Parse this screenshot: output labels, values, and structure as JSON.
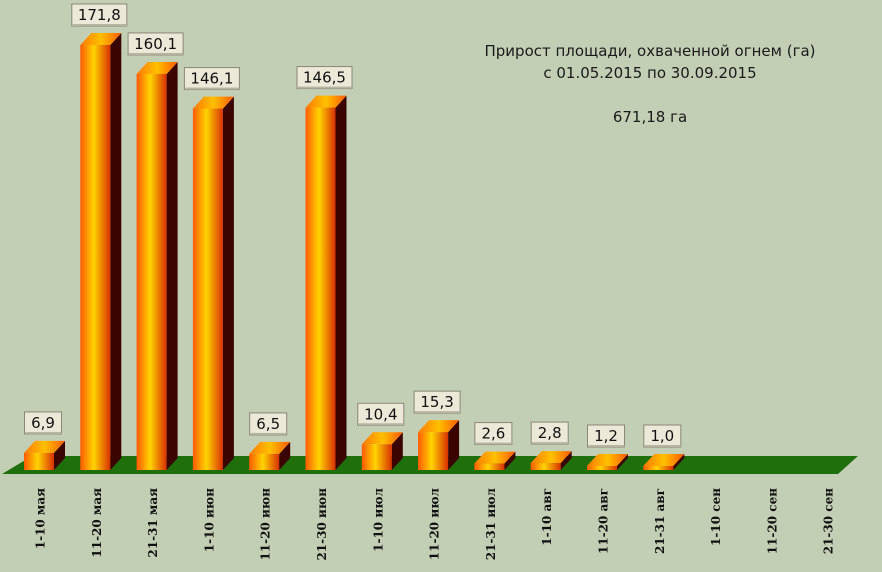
{
  "chart_data": {
    "type": "bar",
    "title": "Прирост площади, охваченной огнем (га)",
    "subtitle": "с 01.05.2015  по  30.09.2015",
    "annotation": "671,18 га",
    "categories": [
      "1-10   мая",
      "11-20 мая",
      "21-31 мая",
      "1-10   июн",
      "11-20 июн",
      "21-30 июн",
      "1-10  июл",
      "11-20 июл",
      "21-31 июл",
      "1-10    авг",
      "11-20  авг",
      "21-31  авг",
      "1-10   сен",
      "11-20 сен",
      "21-30 сен"
    ],
    "values": [
      6.9,
      171.8,
      160.1,
      146.1,
      6.5,
      146.5,
      10.4,
      15.3,
      2.6,
      2.8,
      1.2,
      1.0,
      null,
      null,
      null
    ],
    "value_labels": [
      "6,9",
      "171,8",
      "160,1",
      "146,1",
      "6,5",
      "146,5",
      "10,4",
      "15,3",
      "2,6",
      "2,8",
      "1,2",
      "1,0",
      "",
      "",
      ""
    ],
    "ylim": [
      0,
      180
    ],
    "grid": false,
    "legend": "none",
    "colors": {
      "background": "#c3cfb5",
      "floor": "#1f6f0d",
      "bar_front_light": "#ffd400",
      "bar_front_dark": "#d83000",
      "bar_side": "#3a0400",
      "bar_top": "#ff9a10",
      "label_box": "#ece9d8"
    }
  }
}
